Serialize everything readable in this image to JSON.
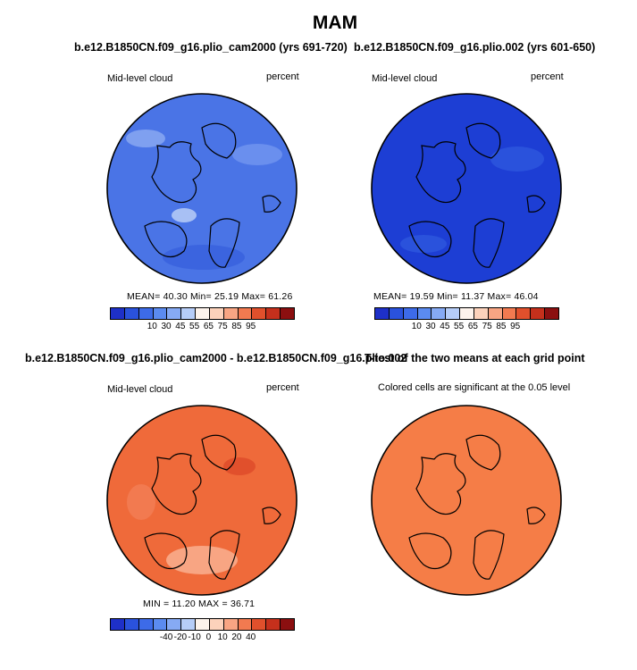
{
  "figure": {
    "season": "MAM",
    "panels": [
      {
        "title": "b.e12.B1850CN.f09_g16.plio_cam2000 (yrs 691-720)",
        "left_label": "Mid-level cloud",
        "right_label": "percent",
        "stats": "MEAN=   40.30   Min=   25.19   Max=   61.26",
        "base_color": "#4a74e6",
        "colorbar_ticks": [
          "10",
          "30",
          "45",
          "55",
          "65",
          "75",
          "85",
          "95"
        ]
      },
      {
        "title": "b.e12.B1850CN.f09_g16.plio.002 (yrs 601-650)",
        "left_label": "Mid-level cloud",
        "right_label": "percent",
        "stats": "MEAN=   19.59   Min=   11.37   Max=   46.04",
        "base_color": "#1d3ed4",
        "colorbar_ticks": [
          "10",
          "30",
          "45",
          "55",
          "65",
          "75",
          "85",
          "95"
        ]
      },
      {
        "title": "b.e12.B1850CN.f09_g16.plio_cam2000 - b.e12.B1850CN.f09_g16.plio.002",
        "left_label": "Mid-level cloud",
        "right_label": "percent",
        "stats": "MIN  =   11.20  MAX  =   36.71",
        "base_color": "#ef6a3a",
        "colorbar_ticks": [
          "-40",
          "-20",
          "-10",
          "0",
          "10",
          "20",
          "40"
        ]
      },
      {
        "title": "T-test of the two means at each grid point",
        "subtitle": "Colored cells are significant at the 0.05 level",
        "base_color": "#f57d47"
      }
    ],
    "colorbar_colors": [
      "#1e30c8",
      "#2a52dc",
      "#3d6be8",
      "#5b8bf0",
      "#86aaf4",
      "#b6cdf8",
      "#fdf3ec",
      "#fcd2bb",
      "#f8a583",
      "#f27a50",
      "#e1502c",
      "#c5301c",
      "#8b0f10"
    ]
  }
}
